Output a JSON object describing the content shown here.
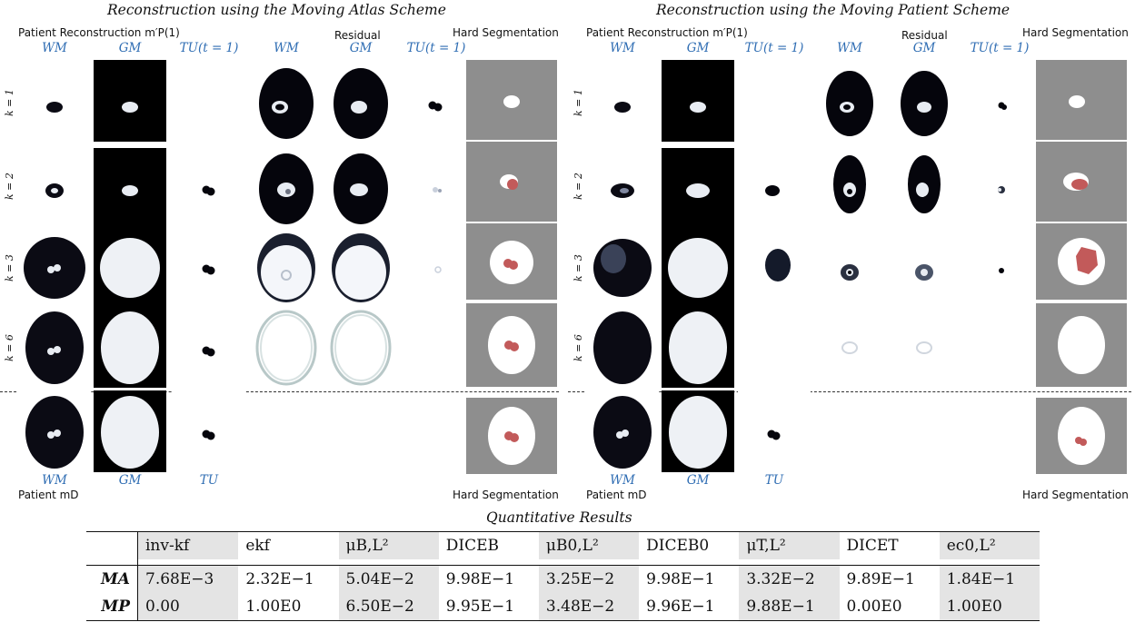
{
  "left": {
    "title": "Reconstruction using the Moving Atlas Scheme",
    "top_label": "Patient Reconstruction m′P(1)",
    "residual_label": "Residual",
    "seg_label": "Hard Segmentation",
    "col_labels": [
      "WM",
      "GM",
      "TU(t = 1)",
      "WM",
      "GM",
      "TU(t = 1)"
    ],
    "bottom_labels": [
      "WM",
      "GM",
      "TU"
    ],
    "patient_label": "Patient mD",
    "bottom_seg_label": "Hard Segmentation"
  },
  "right": {
    "title": "Reconstruction using the Moving Patient Scheme",
    "top_label": "Patient Reconstruction m′P(1)",
    "residual_label": "Residual",
    "seg_label": "Hard Segmentation",
    "col_labels": [
      "WM",
      "GM",
      "TU(t = 1)",
      "WM",
      "GM",
      "TU(t = 1)"
    ],
    "bottom_labels": [
      "WM",
      "GM",
      "TU"
    ],
    "patient_label": "Patient mD",
    "bottom_seg_label": "Hard Segmentation"
  },
  "rows": [
    "k = 1",
    "k = 2",
    "k = 3",
    "k = 6"
  ],
  "table": {
    "title": "Quantitative Results",
    "headers": [
      "inv-kf",
      "ekf",
      "μB,L²",
      "DICEB",
      "μB0,L²",
      "DICEB0",
      "μT,L²",
      "DICET",
      "ec0,L²"
    ],
    "rows": [
      {
        "name": "MA",
        "values": [
          "7.68E−3",
          "2.32E−1",
          "5.04E−2",
          "9.98E−1",
          "3.25E−2",
          "9.98E−1",
          "3.32E−2",
          "9.89E−1",
          "1.84E−1"
        ]
      },
      {
        "name": "MP",
        "values": [
          "0.00",
          "1.00E0",
          "6.50E−2",
          "9.95E−1",
          "3.48E−2",
          "9.96E−1",
          "9.88E−1",
          "0.00E0",
          "1.00E0"
        ]
      }
    ]
  }
}
